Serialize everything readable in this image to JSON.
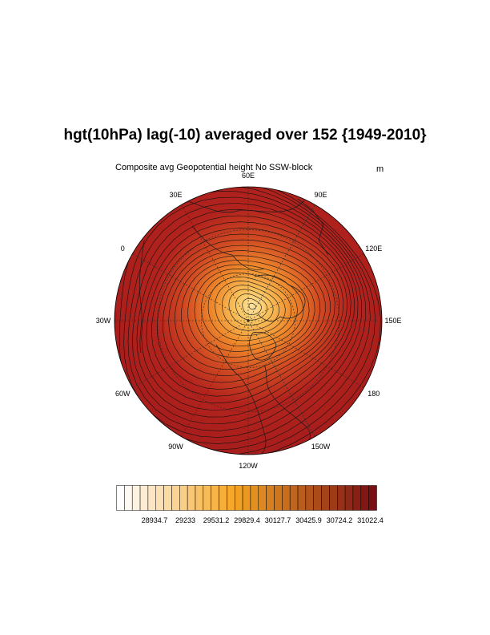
{
  "title": "hgt(10hPa) lag(-10) averaged over 152 {1949-2010}",
  "subtitle": "Composite avg Geopotential height No SSW-block",
  "units": "m",
  "longitude_labels": [
    {
      "text": "60E",
      "deg": 60
    },
    {
      "text": "30E",
      "deg": 30
    },
    {
      "text": "0",
      "deg": 0
    },
    {
      "text": "30W",
      "deg": -30
    },
    {
      "text": "60W",
      "deg": -60
    },
    {
      "text": "90W",
      "deg": -90
    },
    {
      "text": "120W",
      "deg": -120
    },
    {
      "text": "150W",
      "deg": -150
    },
    {
      "text": "180",
      "deg": 180
    },
    {
      "text": "150E",
      "deg": 150
    },
    {
      "text": "120E",
      "deg": 120
    },
    {
      "text": "90E",
      "deg": 90
    }
  ],
  "colorbar": {
    "labels": [
      "28934.7",
      "29233",
      "29531.2",
      "29829.4",
      "30127.7",
      "30425.9",
      "30724.2",
      "31022.4"
    ],
    "box_count": 33,
    "color_low": "#ffffff",
    "color_mid": "#f5a623",
    "color_high": "#7a0f14"
  },
  "field": {
    "background_color": "#b3231d",
    "low_center_color": "#fde3a0",
    "contour_count": 26
  }
}
